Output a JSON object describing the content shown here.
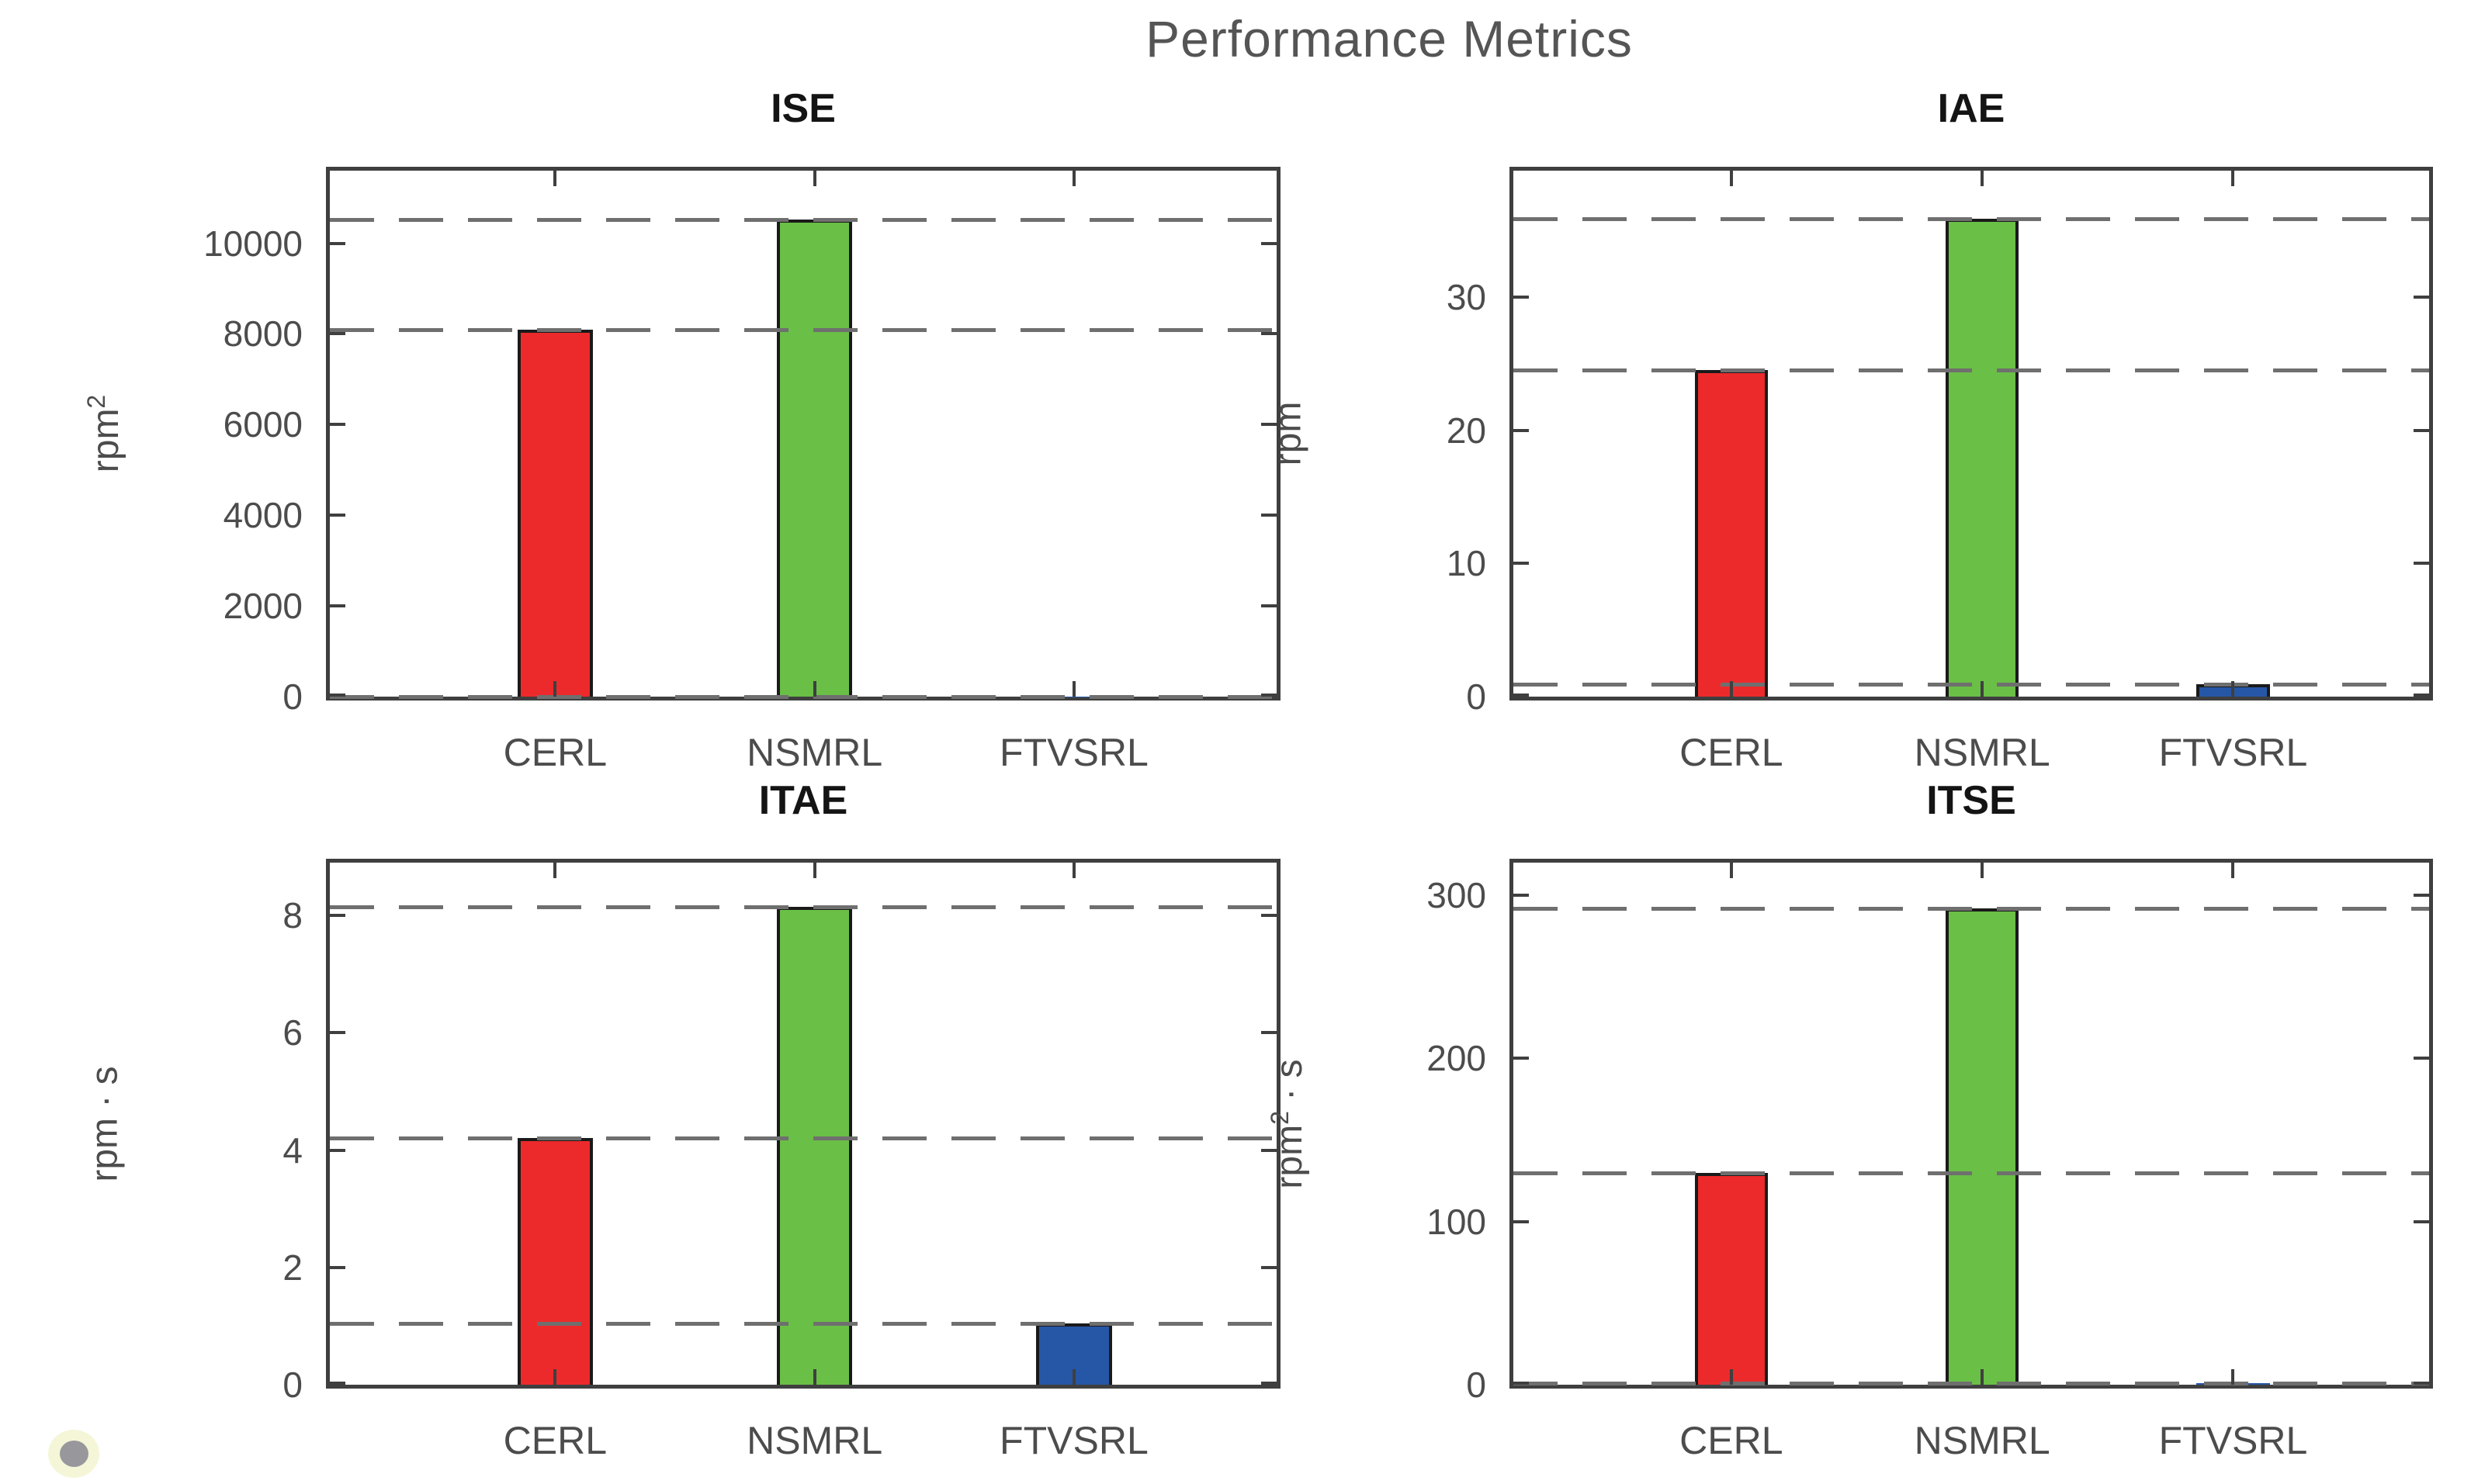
{
  "figure_title": "Performance Metrics",
  "colors": {
    "bar_cerl": "#ed2a2b",
    "bar_nsmrl": "#6abf46",
    "bar_ftvsrl": "#2657a6",
    "bar_edge": "#1a1a1a",
    "dash_line": "#6f6f6f",
    "axis": "#3f3f3f",
    "tick_text": "#4c4c4c",
    "subplot_title_text": "#141414",
    "figure_title_text": "#555555",
    "cursor_dot_core": "#98989c",
    "cursor_dot_halo": "#f5f6d8"
  },
  "categories": [
    "CERL",
    "NSMRL",
    "FTVSRL"
  ],
  "chart_data": [
    {
      "type": "bar",
      "title": "ISE",
      "ylabel": "rpm^2",
      "ylabel_parts": {
        "base": "rpm",
        "sup": "2",
        "rest": ""
      },
      "categories": [
        "CERL",
        "NSMRL",
        "FTVSRL"
      ],
      "values": [
        8100,
        10520,
        3
      ],
      "bar_colors": [
        "#ed2a2b",
        "#6abf46",
        "#2657a6"
      ],
      "yticks": [
        0,
        2000,
        4000,
        6000,
        8000,
        10000
      ],
      "ylim": [
        0,
        11600
      ],
      "ref_lines": [
        10520,
        8100,
        3
      ],
      "grid": false,
      "legend": "none"
    },
    {
      "type": "bar",
      "title": "IAE",
      "ylabel": "rpm",
      "ylabel_parts": {
        "base": "rpm",
        "sup": "",
        "rest": ""
      },
      "categories": [
        "CERL",
        "NSMRL",
        "FTVSRL"
      ],
      "values": [
        24.5,
        35.9,
        0.95
      ],
      "bar_colors": [
        "#ed2a2b",
        "#6abf46",
        "#2657a6"
      ],
      "yticks": [
        0,
        10,
        20,
        30
      ],
      "ylim": [
        0,
        39.5
      ],
      "ref_lines": [
        35.9,
        24.5,
        0.95
      ],
      "grid": false,
      "legend": "none"
    },
    {
      "type": "bar",
      "title": "ITAE",
      "ylabel": "rpm · s",
      "ylabel_parts": {
        "base": "rpm",
        "sup": "",
        "rest": " · s"
      },
      "categories": [
        "CERL",
        "NSMRL",
        "FTVSRL"
      ],
      "values": [
        4.2,
        8.15,
        1.05
      ],
      "bar_colors": [
        "#ed2a2b",
        "#6abf46",
        "#2657a6"
      ],
      "yticks": [
        0,
        2,
        4,
        6,
        8
      ],
      "ylim": [
        0,
        8.9
      ],
      "ref_lines": [
        8.15,
        4.2,
        1.05
      ],
      "grid": false,
      "legend": "none"
    },
    {
      "type": "bar",
      "title": "ITSE",
      "ylabel": "rpm^2 · s",
      "ylabel_parts": {
        "base": "rpm",
        "sup": "2",
        "rest": " · s"
      },
      "categories": [
        "CERL",
        "NSMRL",
        "FTVSRL"
      ],
      "values": [
        130,
        292,
        1
      ],
      "bar_colors": [
        "#ed2a2b",
        "#6abf46",
        "#2657a6"
      ],
      "yticks": [
        0,
        100,
        200,
        300
      ],
      "ylim": [
        0,
        320
      ],
      "ref_lines": [
        292,
        130,
        1
      ],
      "grid": false,
      "legend": "none"
    }
  ]
}
